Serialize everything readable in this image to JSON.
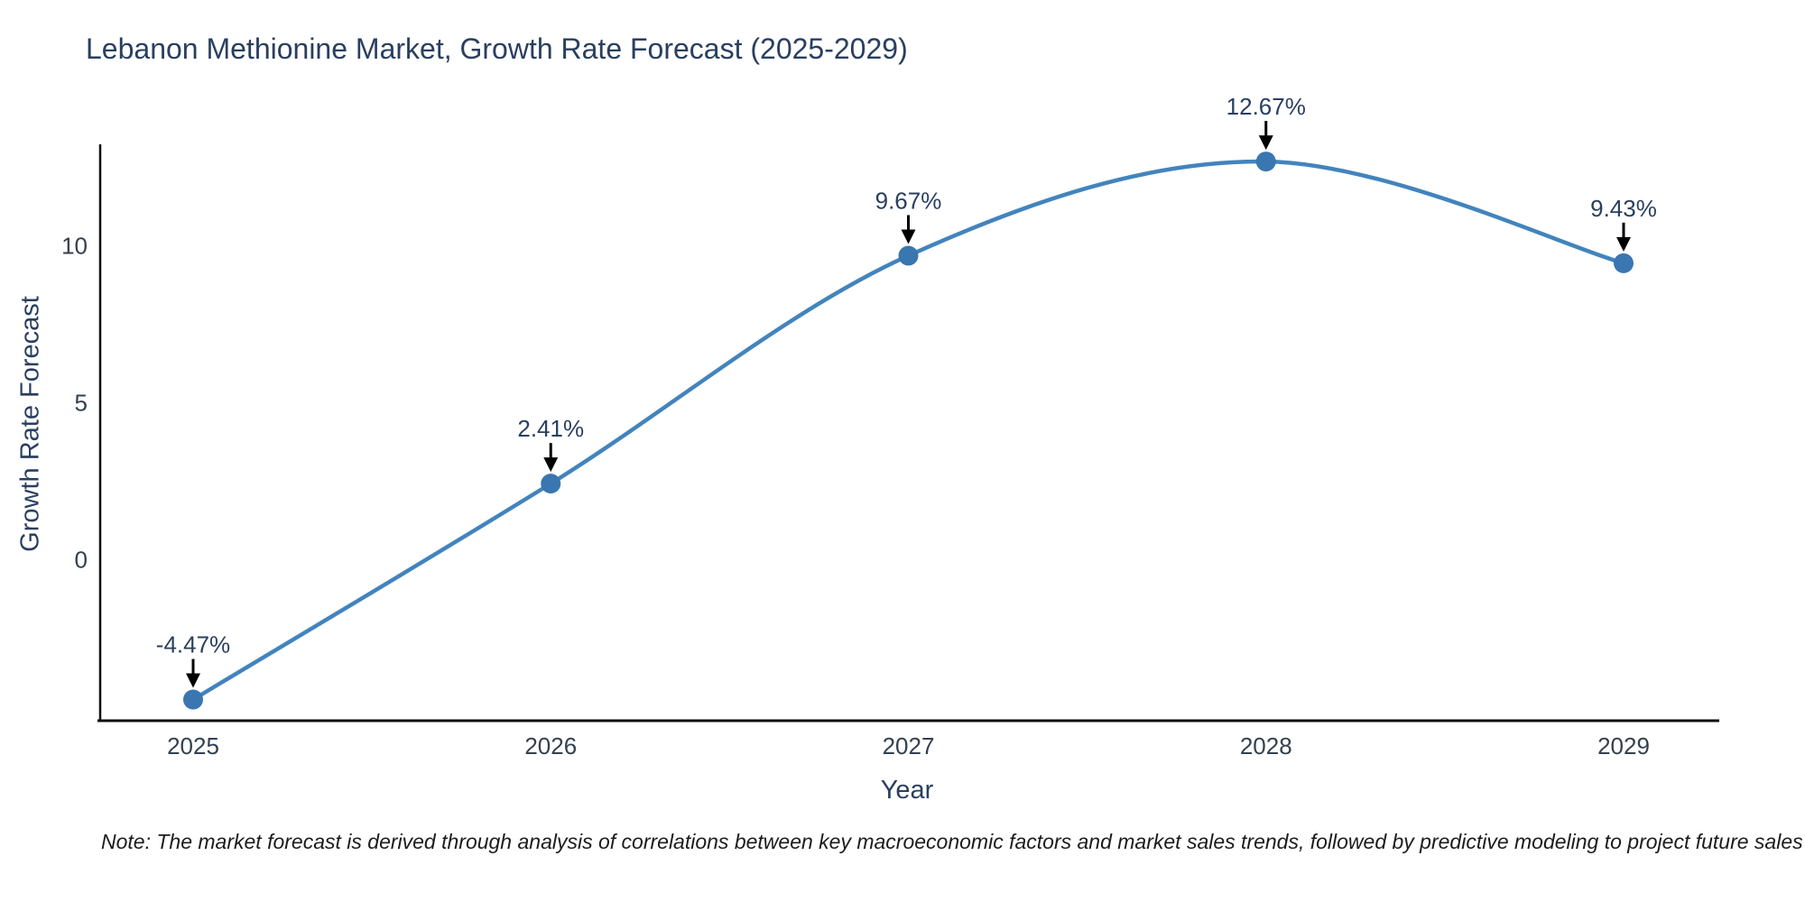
{
  "title": "Lebanon Methionine Market, Growth Rate Forecast (2025-2029)",
  "note": "Note: The market forecast is derived through analysis of correlations between key macroeconomic factors and market sales trends, followed by predictive modeling to project future sales",
  "chart_data": {
    "type": "line",
    "line_shape": "spline",
    "title": "Lebanon Methionine Market, Growth Rate Forecast (2025-2029)",
    "xlabel": "Year",
    "ylabel": "Growth Rate Forecast",
    "x": [
      2025,
      2026,
      2027,
      2028,
      2029
    ],
    "values": [
      -4.47,
      2.41,
      9.67,
      12.67,
      9.43
    ],
    "point_labels": [
      "-4.47%",
      "2.41%",
      "9.67%",
      "12.67%",
      "9.43%"
    ],
    "series_name": "Growth Rate Forecast",
    "yticks": [
      0,
      5,
      10
    ],
    "ylim": [
      -5.1,
      13.2
    ],
    "grid": false,
    "legend": "none",
    "annotations_arrow": true,
    "colors": {
      "line": "#4284bd",
      "marker": "#3a76b0",
      "axis": "#0d0d0d",
      "arrow": "#000000",
      "heading_text": "#2a3f5f",
      "tick_text": "#33404f",
      "note_text": "#1c1c1c"
    }
  }
}
